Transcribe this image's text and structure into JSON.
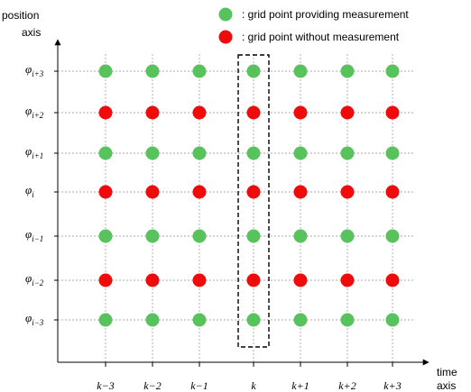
{
  "axes": {
    "y_title_line1": "position",
    "y_title_line2": "axis",
    "x_title_line1": "time",
    "x_title_line2": "axis"
  },
  "legend": [
    {
      "color": "#58c35c",
      "text": ": grid point providing measurement",
      "name": "legend-green"
    },
    {
      "color": "#ef0b0b",
      "text": ": grid point without measurement",
      "name": "legend-red"
    }
  ],
  "rows": [
    {
      "label": "φi+3",
      "base": "φ",
      "sub": "i+3",
      "status": "measured"
    },
    {
      "label": "φi+2",
      "base": "φ",
      "sub": "i+2",
      "status": "unmeasured"
    },
    {
      "label": "φi+1",
      "base": "φ",
      "sub": "i+1",
      "status": "measured"
    },
    {
      "label": "φi",
      "base": "φ",
      "sub": "i",
      "status": "unmeasured"
    },
    {
      "label": "φi−1",
      "base": "φ",
      "sub": "i−1",
      "status": "measured"
    },
    {
      "label": "φi−2",
      "base": "φ",
      "sub": "i−2",
      "status": "unmeasured"
    },
    {
      "label": "φi−3",
      "base": "φ",
      "sub": "i−3",
      "status": "measured"
    }
  ],
  "columns": [
    "k−3",
    "k−2",
    "k−1",
    "k",
    "k+1",
    "k+2",
    "k+3"
  ],
  "highlighted_column": "k",
  "colors": {
    "measured": "#58c35c",
    "unmeasured": "#ef0b0b",
    "axis": "#000000",
    "grid": "#a8a8a8"
  }
}
